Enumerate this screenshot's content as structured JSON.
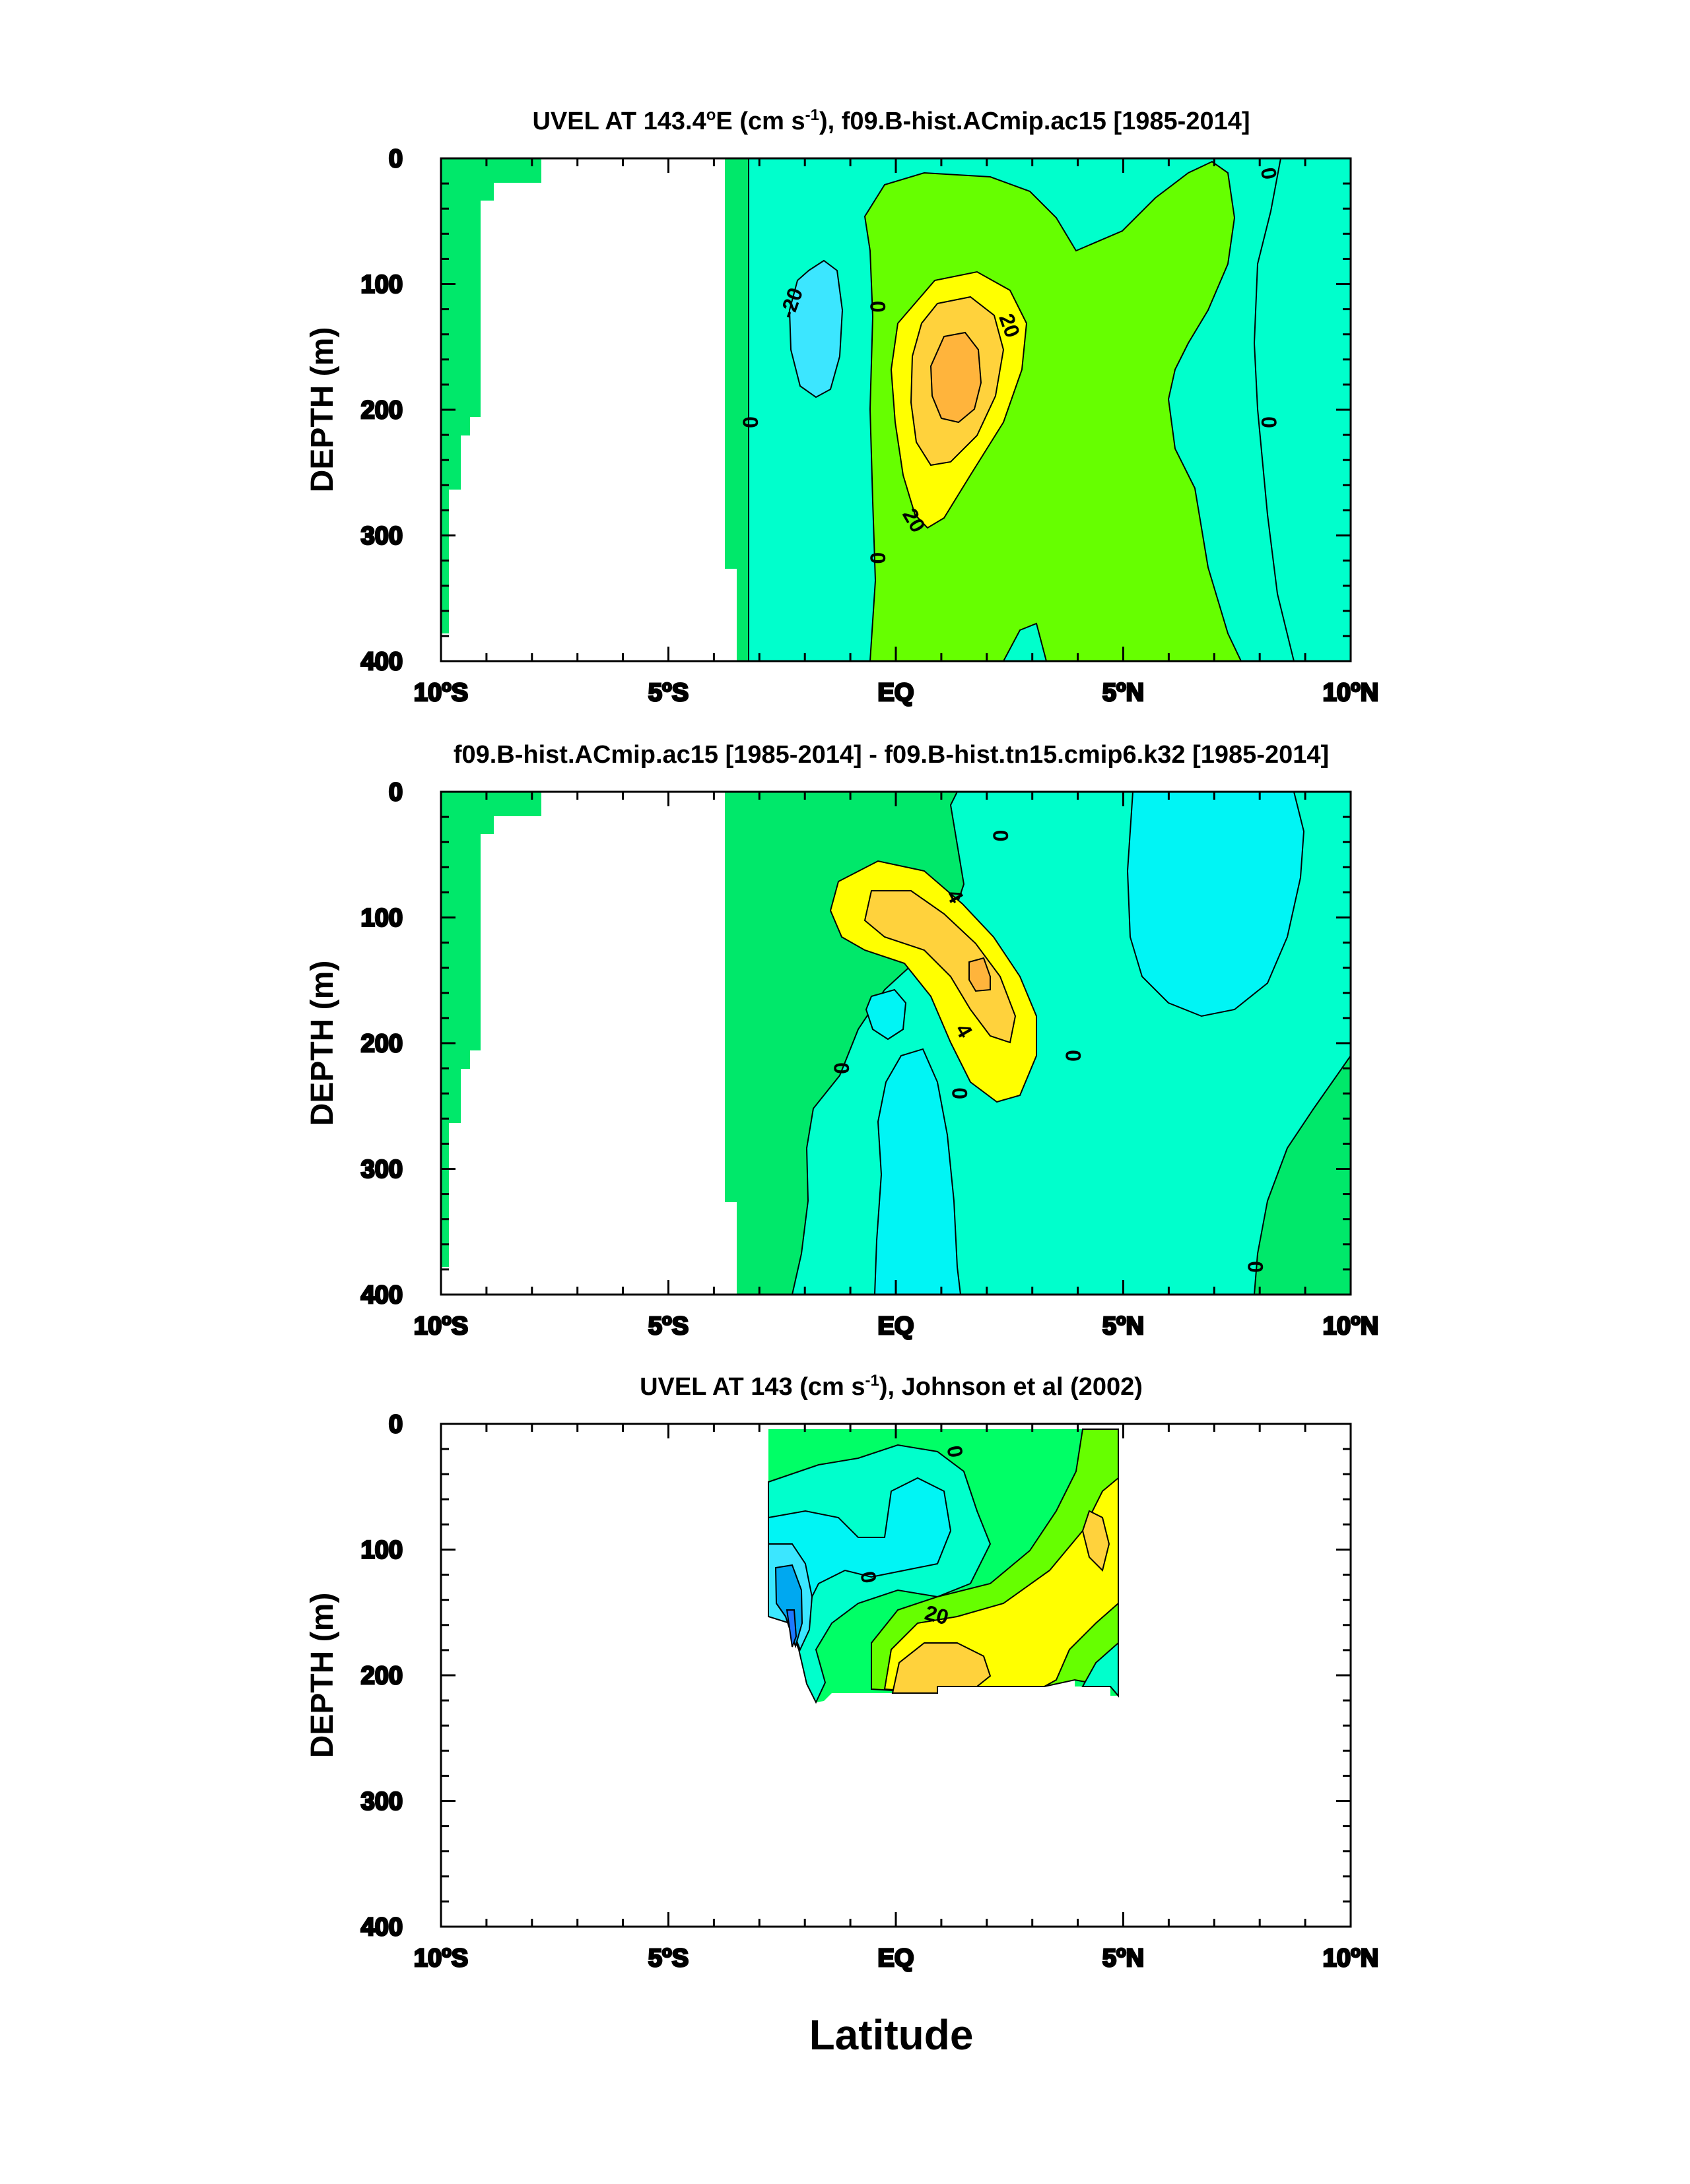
{
  "colors": {
    "green_pos": "#00e86a",
    "aqua_neg": "#00ffcc",
    "cyan": "#00f5f5",
    "lime": "#66ff00",
    "yellow": "#ffff00",
    "gold": "#ffd23c",
    "orange": "#ffb43c",
    "sky": "#3ce6ff",
    "blue": "#1eb4ff",
    "mid_blue": "#00a8f0",
    "deep_blue": "#1e78ff",
    "bright_green": "#00ff66"
  },
  "xlabel": "Latitude",
  "chart_data": [
    {
      "type": "heatmap",
      "subtype": "filled-contour",
      "title_main": "UVEL AT 143.4",
      "title_deg": "o",
      "title_mid": "E (cm s",
      "title_sup": "-1",
      "title_tail": "), f09.B-hist.ACmip.ac15 [1985-2014]",
      "ylabel": "DEPTH (m)",
      "xlim": [
        -10,
        10
      ],
      "ylim": [
        400,
        0
      ],
      "y_inverted": true,
      "yticks": [
        0,
        100,
        200,
        300,
        400
      ],
      "xticks": [
        {
          "value": -10,
          "num": "10",
          "deg": "o",
          "hem": "S"
        },
        {
          "value": -5,
          "num": "5",
          "deg": "o",
          "hem": "S"
        },
        {
          "value": 0,
          "num": "EQ",
          "deg": "",
          "hem": ""
        },
        {
          "value": 5,
          "num": "5",
          "deg": "o",
          "hem": "N"
        },
        {
          "value": 10,
          "num": "10",
          "deg": "o",
          "hem": "N"
        }
      ],
      "contour_labels": [
        {
          "text": "-20",
          "lat": -2.3,
          "depth": 115,
          "rot": -70
        },
        {
          "text": "0",
          "lat": -3.2,
          "depth": 210,
          "rot": 90
        },
        {
          "text": "0",
          "lat": -0.4,
          "depth": 118,
          "rot": 90
        },
        {
          "text": "20",
          "lat": 2.5,
          "depth": 133,
          "rot": 70
        },
        {
          "text": "20",
          "lat": 0.4,
          "depth": 288,
          "rot": 60
        },
        {
          "text": "0",
          "lat": -0.4,
          "depth": 318,
          "rot": 90
        },
        {
          "text": "0",
          "lat": 8.2,
          "depth": 12,
          "rot": 80
        },
        {
          "text": "0",
          "lat": 8.2,
          "depth": 210,
          "rot": 90
        }
      ]
    },
    {
      "type": "heatmap",
      "subtype": "filled-contour",
      "title_main": "f09.B-hist.ACmip.ac15 [1985-2014] - f09.B-hist.tn15.cmip6.k32 [1985-2014]",
      "ylabel": "DEPTH (m)",
      "xlim": [
        -10,
        10
      ],
      "ylim": [
        400,
        0
      ],
      "y_inverted": true,
      "yticks": [
        0,
        100,
        200,
        300,
        400
      ],
      "xticks": [
        {
          "value": -10,
          "num": "10",
          "deg": "o",
          "hem": "S"
        },
        {
          "value": -5,
          "num": "5",
          "deg": "o",
          "hem": "S"
        },
        {
          "value": 0,
          "num": "EQ",
          "deg": "",
          "hem": ""
        },
        {
          "value": 5,
          "num": "5",
          "deg": "o",
          "hem": "N"
        },
        {
          "value": 10,
          "num": "10",
          "deg": "o",
          "hem": "N"
        }
      ],
      "contour_labels": [
        {
          "text": "4",
          "lat": 1.3,
          "depth": 83,
          "rot": 60
        },
        {
          "text": "4",
          "lat": 1.5,
          "depth": 190,
          "rot": 60
        },
        {
          "text": "0",
          "lat": 2.3,
          "depth": 35,
          "rot": 90
        },
        {
          "text": "0",
          "lat": -1.2,
          "depth": 220,
          "rot": 90
        },
        {
          "text": "0",
          "lat": 1.4,
          "depth": 240,
          "rot": 90
        },
        {
          "text": "0",
          "lat": 3.9,
          "depth": 210,
          "rot": 90
        },
        {
          "text": "0",
          "lat": 7.9,
          "depth": 378,
          "rot": 90
        }
      ]
    },
    {
      "type": "heatmap",
      "subtype": "filled-contour",
      "title_main": "UVEL AT 143 (cm s",
      "title_sup": "-1",
      "title_tail": "), Johnson et al (2002)",
      "ylabel": "DEPTH (m)",
      "xlim": [
        -10,
        10
      ],
      "ylim": [
        400,
        0
      ],
      "y_inverted": true,
      "yticks": [
        0,
        100,
        200,
        300,
        400
      ],
      "xticks": [
        {
          "value": -10,
          "num": "10",
          "deg": "o",
          "hem": "S"
        },
        {
          "value": -5,
          "num": "5",
          "deg": "o",
          "hem": "S"
        },
        {
          "value": 0,
          "num": "EQ",
          "deg": "",
          "hem": ""
        },
        {
          "value": 5,
          "num": "5",
          "deg": "o",
          "hem": "N"
        },
        {
          "value": 10,
          "num": "10",
          "deg": "o",
          "hem": "N"
        }
      ],
      "contour_labels": [
        {
          "text": "0",
          "lat": 1.3,
          "depth": 22,
          "rot": 80
        },
        {
          "text": "0",
          "lat": -0.6,
          "depth": 122,
          "rot": 80
        },
        {
          "text": "20",
          "lat": 0.9,
          "depth": 152,
          "rot": 15
        }
      ]
    }
  ]
}
